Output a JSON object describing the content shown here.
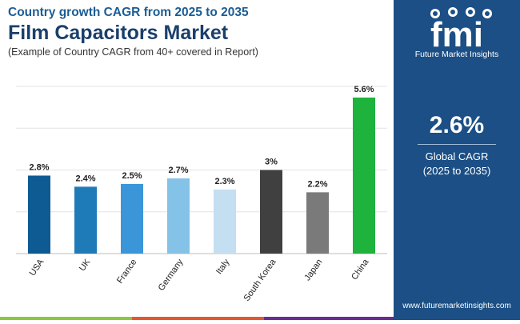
{
  "header": {
    "subtitle1": "Country growth CAGR from 2025 to 2035",
    "title": "Film Capacitors Market",
    "subtitle2": "(Example of Country CAGR from 40+ covered in Report)"
  },
  "side": {
    "logo_text": "fmi",
    "logo_caption": "Future Market Insights",
    "cagr_value": "2.6%",
    "cagr_label_line1": "Global CAGR",
    "cagr_label_line2": "(2025 to 2035)",
    "website": "www.futuremarketinsights.com",
    "panel_color": "#1b4f85"
  },
  "chart_data": {
    "type": "bar",
    "categories": [
      "USA",
      "UK",
      "France",
      "Germany",
      "Italy",
      "South Korea",
      "Japan",
      "China"
    ],
    "values": [
      2.8,
      2.4,
      2.5,
      2.7,
      2.3,
      3.0,
      2.2,
      5.6
    ],
    "labels": [
      "2.8%",
      "2.4%",
      "2.5%",
      "2.7%",
      "2.3%",
      "3%",
      "2.2%",
      "5.6%"
    ],
    "colors": [
      "#0e5b94",
      "#1f7ab8",
      "#3a96d8",
      "#85c2e8",
      "#c4def2",
      "#404040",
      "#7a7a7a",
      "#1db33c"
    ],
    "ylim": [
      0,
      6
    ],
    "grid": true
  },
  "bottom_strip_colors": [
    "#8dc63f",
    "#e4572e",
    "#6a2c91"
  ]
}
